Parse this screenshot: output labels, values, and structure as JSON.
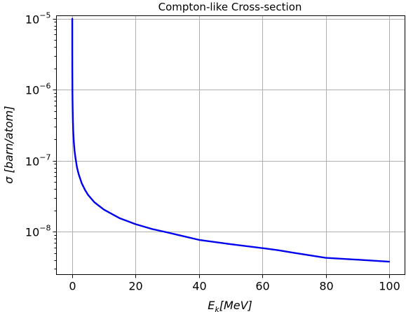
{
  "chart_data": {
    "type": "line",
    "title": "Compton-like Cross-section",
    "xlabel_symbol": "E",
    "xlabel_sub": "k",
    "xlabel_rest": "[MeV]",
    "ylabel_symbol": "σ",
    "ylabel_rest": "[barn/atom]",
    "xscale": "linear",
    "yscale": "log",
    "xlim": [
      -5,
      105
    ],
    "ylim": [
      2.5e-09,
      1.1e-05
    ],
    "grid": true,
    "x_ticks": [
      0,
      20,
      40,
      60,
      80,
      100
    ],
    "x_tick_labels": [
      "0",
      "20",
      "40",
      "60",
      "80",
      "100"
    ],
    "y_ticks": [
      1e-08,
      1e-07,
      1e-06,
      1e-05
    ],
    "y_tick_labels": [
      {
        "base": "10",
        "exp": "−8"
      },
      {
        "base": "10",
        "exp": "−7"
      },
      {
        "base": "10",
        "exp": "−6"
      },
      {
        "base": "10",
        "exp": "−5"
      }
    ],
    "series": [
      {
        "color": "#0000ee",
        "x": [
          0,
          0.001,
          0.002,
          0.005,
          0.01,
          0.05,
          0.1,
          0.2,
          0.3,
          0.5,
          0.7,
          1,
          1.5,
          2,
          3,
          4,
          5,
          7,
          8,
          10,
          15,
          20,
          25,
          30,
          40,
          50,
          60,
          65,
          70,
          80,
          90,
          100
        ],
        "values": [
          1e-05,
          8e-06,
          6e-06,
          3.5e-06,
          2.1e-06,
          9e-07,
          6e-07,
          3.5e-07,
          2.6e-07,
          1.8e-07,
          1.4e-07,
          1.1e-07,
          8e-08,
          6.5e-08,
          4.8e-08,
          3.9e-08,
          3.3e-08,
          2.6e-08,
          2.4e-08,
          2.05e-08,
          1.55e-08,
          1.28e-08,
          1.1e-08,
          9.8e-09,
          7.7e-09,
          6.7e-09,
          5.9e-09,
          5.5e-09,
          5.05e-09,
          4.3e-09,
          4.05e-09,
          3.8e-09
        ]
      }
    ]
  }
}
